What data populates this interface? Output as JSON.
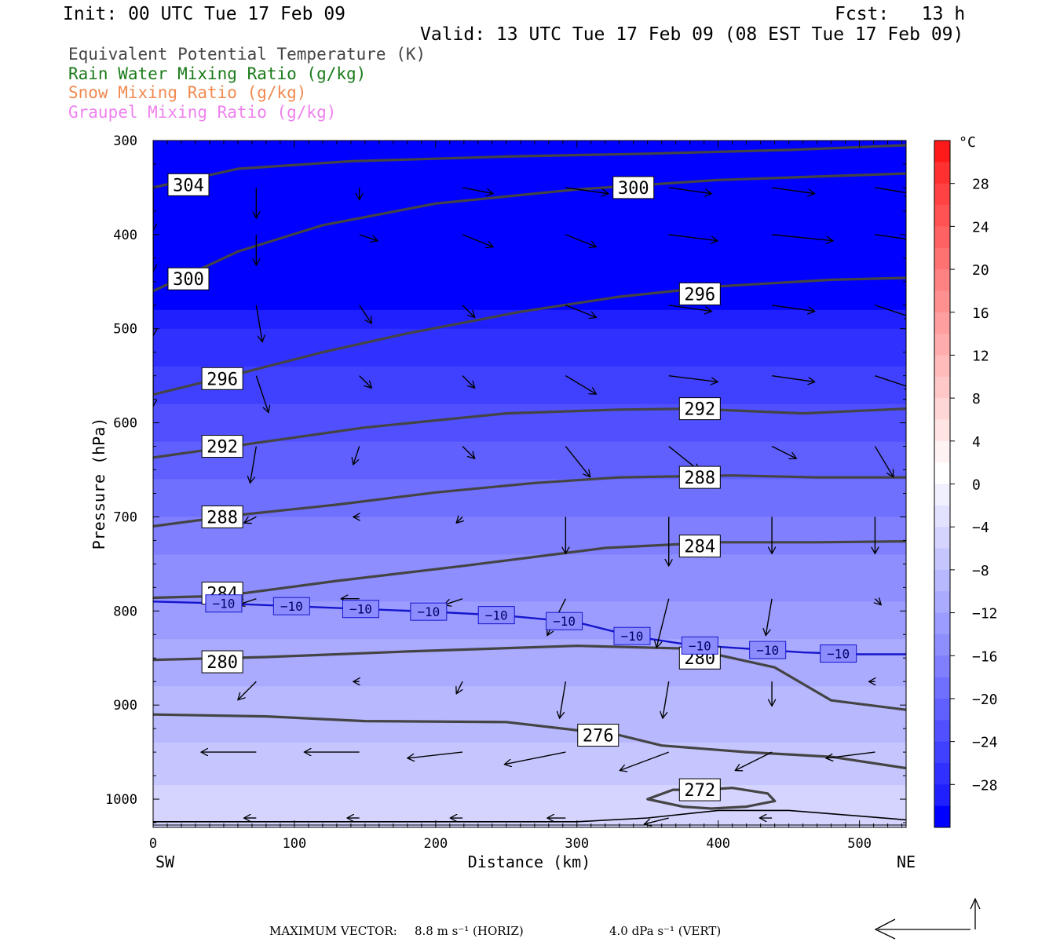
{
  "header": {
    "init": "Init: 00 UTC Tue 17 Feb 09",
    "fcst": "Fcst:   13 h",
    "valid": "Valid: 13 UTC Tue 17 Feb 09 (08 EST Tue 17 Feb 09)"
  },
  "legend": [
    {
      "label": "Equivalent Potential Temperature (K)",
      "color": "#444444"
    },
    {
      "label": "Rain Water Mixing Ratio (g/kg)",
      "color": "#1a7a1a"
    },
    {
      "label": "Snow Mixing Ratio (g/kg)",
      "color": "#f08a50"
    },
    {
      "label": "Graupel Mixing Ratio (g/kg)",
      "color": "#ee82ee"
    }
  ],
  "footer": {
    "label": "MAXIMUM VECTOR:",
    "horiz": "8.8 m s⁻¹ (HORIZ)",
    "vert": "4.0 dPa s⁻¹ (VERT)"
  },
  "chart_data": {
    "type": "contour",
    "xlabel": "Distance (km)",
    "ylabel": "Pressure (hPa)",
    "xlim": [
      0,
      533
    ],
    "ylim": [
      1030,
      300
    ],
    "x_ticks": [
      0,
      100,
      200,
      300,
      400,
      500
    ],
    "y_ticks": [
      300,
      400,
      500,
      600,
      700,
      800,
      900,
      1000
    ],
    "x_end_labels": {
      "left": "SW",
      "right": "NE"
    },
    "colorbar": {
      "unit": "°C",
      "tick_labels": [
        "28",
        "24",
        "20",
        "16",
        "12",
        "8",
        "4",
        "0",
        "−4",
        "−8",
        "−12",
        "−16",
        "−20",
        "−24",
        "−28"
      ],
      "tick_values": [
        28,
        24,
        20,
        16,
        12,
        8,
        4,
        0,
        -4,
        -8,
        -12,
        -16,
        -20,
        -24,
        -28
      ],
      "range": [
        -32,
        32
      ],
      "levels": [
        32,
        30,
        28,
        26,
        24,
        22,
        20,
        18,
        16,
        14,
        12,
        10,
        8,
        6,
        4,
        2,
        0,
        -2,
        -4,
        -6,
        -8,
        -10,
        -12,
        -14,
        -16,
        -18,
        -20,
        -22,
        -24,
        -26,
        -28,
        -30,
        -32
      ],
      "colors": [
        "#ff1a1a",
        "#ff3030",
        "#ff4242",
        "#ff5252",
        "#ff6262",
        "#ff7272",
        "#ff8282",
        "#ff9090",
        "#ff9e9e",
        "#ffacac",
        "#ffbaba",
        "#ffc8c8",
        "#ffd6d6",
        "#ffe4e4",
        "#fff2f2",
        "#ffffff",
        "#f0f0ff",
        "#e2e2ff",
        "#d4d4ff",
        "#c6c6ff",
        "#b8b8ff",
        "#aaaaff",
        "#9c9cff",
        "#8e8eff",
        "#8080ff",
        "#7070ff",
        "#6060ff",
        "#5050ff",
        "#4040ff",
        "#3030ff",
        "#2020ff",
        "#0000ff"
      ]
    },
    "temperature_field": {
      "description": "shaded temperature (°C) vs pressure",
      "profile": [
        {
          "p": 300,
          "t": -32
        },
        {
          "p": 480,
          "t": -30
        },
        {
          "p": 500,
          "t": -28
        },
        {
          "p": 540,
          "t": -26
        },
        {
          "p": 580,
          "t": -24
        },
        {
          "p": 620,
          "t": -22
        },
        {
          "p": 660,
          "t": -20
        },
        {
          "p": 700,
          "t": -18
        },
        {
          "p": 740,
          "t": -16
        },
        {
          "p": 790,
          "t": -14
        },
        {
          "p": 830,
          "t": -12
        },
        {
          "p": 880,
          "t": -10
        },
        {
          "p": 940,
          "t": -8
        },
        {
          "p": 985,
          "t": -6
        },
        {
          "p": 1030,
          "t": -4
        }
      ]
    },
    "isotherm_label": "−10",
    "isotherm": {
      "value": -10,
      "points": [
        [
          0,
          790
        ],
        [
          50,
          792
        ],
        [
          100,
          795
        ],
        [
          150,
          798
        ],
        [
          200,
          801
        ],
        [
          250,
          805
        ],
        [
          300,
          812
        ],
        [
          340,
          827
        ],
        [
          380,
          836
        ],
        [
          420,
          840
        ],
        [
          460,
          844
        ],
        [
          500,
          846
        ],
        [
          533,
          846
        ]
      ],
      "label_x": [
        50,
        98,
        147,
        195,
        243,
        291,
        339,
        387,
        435,
        485
      ]
    },
    "theta_e_contours": [
      {
        "label": "304",
        "points": [
          [
            0,
            350
          ],
          [
            60,
            330
          ],
          [
            140,
            322
          ],
          [
            250,
            317
          ],
          [
            350,
            314
          ],
          [
            450,
            310
          ],
          [
            533,
            305
          ]
        ],
        "label_at": [
          25,
          347
        ]
      },
      {
        "label": "300",
        "points": [
          [
            0,
            460
          ],
          [
            60,
            418
          ],
          [
            120,
            390
          ],
          [
            200,
            367
          ],
          [
            300,
            352
          ],
          [
            400,
            342
          ],
          [
            533,
            335
          ]
        ],
        "label_at": [
          25,
          447
        ]
      },
      {
        "label": "300",
        "points": [],
        "label_at": [
          340,
          350
        ]
      },
      {
        "label": "296",
        "points": [
          [
            0,
            570
          ],
          [
            60,
            548
          ],
          [
            120,
            525
          ],
          [
            180,
            505
          ],
          [
            260,
            482
          ],
          [
            330,
            466
          ],
          [
            400,
            455
          ],
          [
            480,
            448
          ],
          [
            533,
            446
          ]
        ],
        "label_at": [
          49,
          553
        ]
      },
      {
        "label": "296",
        "points": [],
        "label_at": [
          387,
          463
        ]
      },
      {
        "label": "292",
        "points": [
          [
            0,
            637
          ],
          [
            70,
            622
          ],
          [
            150,
            605
          ],
          [
            250,
            590
          ],
          [
            330,
            586
          ],
          [
            380,
            585
          ],
          [
            460,
            590
          ],
          [
            533,
            585
          ]
        ],
        "label_at": [
          49,
          625
        ]
      },
      {
        "label": "292",
        "points": [],
        "label_at": [
          387,
          585
        ]
      },
      {
        "label": "288",
        "points": [
          [
            0,
            710
          ],
          [
            60,
            698
          ],
          [
            130,
            687
          ],
          [
            200,
            674
          ],
          [
            270,
            664
          ],
          [
            330,
            658
          ],
          [
            410,
            656
          ],
          [
            470,
            658
          ],
          [
            533,
            658
          ]
        ],
        "label_at": [
          49,
          700
        ]
      },
      {
        "label": "288",
        "points": [],
        "label_at": [
          387,
          658
        ]
      },
      {
        "label": "284",
        "points": [
          [
            0,
            786
          ],
          [
            50,
            784
          ],
          [
            130,
            768
          ],
          [
            220,
            752
          ],
          [
            320,
            733
          ],
          [
            400,
            727
          ],
          [
            470,
            727
          ],
          [
            533,
            726
          ]
        ],
        "label_at": [
          49,
          781
        ]
      },
      {
        "label": "284",
        "points": [],
        "label_at": [
          387,
          731
        ]
      },
      {
        "label": "280",
        "points": [
          [
            0,
            852
          ],
          [
            80,
            849
          ],
          [
            180,
            843
          ],
          [
            300,
            837
          ],
          [
            380,
            840
          ],
          [
            440,
            860
          ],
          [
            480,
            895
          ],
          [
            533,
            905
          ]
        ],
        "label_at": [
          49,
          854
        ]
      },
      {
        "label": "280",
        "points": [],
        "label_at": [
          387,
          850
        ]
      },
      {
        "label": "276",
        "points": [
          [
            0,
            910
          ],
          [
            80,
            912
          ],
          [
            150,
            917
          ],
          [
            250,
            918
          ],
          [
            330,
            932
          ],
          [
            360,
            943
          ],
          [
            420,
            950
          ],
          [
            480,
            955
          ],
          [
            533,
            967
          ]
        ],
        "label_at": [
          315,
          932
        ]
      },
      {
        "label": "272",
        "points": [
          [
            390,
            990
          ],
          [
            410,
            988
          ],
          [
            435,
            994
          ],
          [
            440,
            1002
          ],
          [
            420,
            1008
          ],
          [
            395,
            1010
          ],
          [
            375,
            1008
          ],
          [
            350,
            1000
          ],
          [
            368,
            990
          ],
          [
            390,
            990
          ]
        ],
        "label_at": [
          387,
          990
        ]
      }
    ],
    "surface_line": {
      "points": [
        [
          0,
          1024
        ],
        [
          100,
          1024
        ],
        [
          200,
          1024
        ],
        [
          300,
          1024
        ],
        [
          350,
          1020
        ],
        [
          400,
          1012
        ],
        [
          450,
          1012
        ],
        [
          500,
          1018
        ],
        [
          533,
          1022
        ]
      ]
    },
    "wind_vectors": [
      {
        "x": 0,
        "p": 350,
        "dx": 0.0,
        "dy": 0.7
      },
      {
        "x": 73,
        "p": 350,
        "dx": 0.0,
        "dy": 0.5
      },
      {
        "x": 146,
        "p": 350,
        "dx": 0.0,
        "dy": 0.2
      },
      {
        "x": 219,
        "p": 350,
        "dx": 0.5,
        "dy": 0.1
      },
      {
        "x": 292,
        "p": 350,
        "dx": 0.7,
        "dy": 0.1
      },
      {
        "x": 365,
        "p": 350,
        "dx": 0.7,
        "dy": 0.1
      },
      {
        "x": 438,
        "p": 350,
        "dx": 0.7,
        "dy": 0.1
      },
      {
        "x": 511,
        "p": 350,
        "dx": 0.6,
        "dy": 0.1
      },
      {
        "x": 0,
        "p": 400,
        "dx": 0.0,
        "dy": 0.6
      },
      {
        "x": 73,
        "p": 400,
        "dx": 0.0,
        "dy": 0.5
      },
      {
        "x": 146,
        "p": 400,
        "dx": 0.3,
        "dy": 0.1
      },
      {
        "x": 219,
        "p": 400,
        "dx": 0.5,
        "dy": 0.2
      },
      {
        "x": 292,
        "p": 400,
        "dx": 0.5,
        "dy": 0.2
      },
      {
        "x": 365,
        "p": 400,
        "dx": 0.8,
        "dy": 0.1
      },
      {
        "x": 438,
        "p": 400,
        "dx": 1.0,
        "dy": 0.1
      },
      {
        "x": 511,
        "p": 400,
        "dx": 0.7,
        "dy": 0.1
      },
      {
        "x": 0,
        "p": 475,
        "dx": 0.0,
        "dy": 0.5
      },
      {
        "x": 73,
        "p": 475,
        "dx": 0.1,
        "dy": 0.6
      },
      {
        "x": 146,
        "p": 475,
        "dx": 0.2,
        "dy": 0.3
      },
      {
        "x": 219,
        "p": 475,
        "dx": 0.2,
        "dy": 0.2
      },
      {
        "x": 292,
        "p": 475,
        "dx": 0.5,
        "dy": 0.2
      },
      {
        "x": 365,
        "p": 475,
        "dx": 0.7,
        "dy": 0.1
      },
      {
        "x": 438,
        "p": 475,
        "dx": 0.7,
        "dy": 0.1
      },
      {
        "x": 511,
        "p": 475,
        "dx": 0.6,
        "dy": 0.2
      },
      {
        "x": 0,
        "p": 550,
        "dx": 0.0,
        "dy": 0.5
      },
      {
        "x": 73,
        "p": 550,
        "dx": 0.2,
        "dy": 0.6
      },
      {
        "x": 146,
        "p": 550,
        "dx": 0.2,
        "dy": 0.2
      },
      {
        "x": 219,
        "p": 550,
        "dx": 0.2,
        "dy": 0.2
      },
      {
        "x": 292,
        "p": 550,
        "dx": 0.5,
        "dy": 0.3
      },
      {
        "x": 365,
        "p": 550,
        "dx": 0.8,
        "dy": 0.1
      },
      {
        "x": 438,
        "p": 550,
        "dx": 0.7,
        "dy": 0.1
      },
      {
        "x": 511,
        "p": 550,
        "dx": 0.6,
        "dy": 0.2
      },
      {
        "x": 73,
        "p": 625,
        "dx": -0.1,
        "dy": 0.6
      },
      {
        "x": 146,
        "p": 625,
        "dx": -0.1,
        "dy": 0.3
      },
      {
        "x": 219,
        "p": 625,
        "dx": 0.2,
        "dy": 0.2
      },
      {
        "x": 292,
        "p": 625,
        "dx": 0.4,
        "dy": 0.5
      },
      {
        "x": 365,
        "p": 625,
        "dx": 0.5,
        "dy": 0.4
      },
      {
        "x": 438,
        "p": 625,
        "dx": 0.4,
        "dy": 0.2
      },
      {
        "x": 511,
        "p": 625,
        "dx": 0.3,
        "dy": 0.5
      },
      {
        "x": 73,
        "p": 700,
        "dx": -0.2,
        "dy": 0.1
      },
      {
        "x": 146,
        "p": 700,
        "dx": -0.1,
        "dy": 0.0
      },
      {
        "x": 219,
        "p": 700,
        "dx": -0.1,
        "dy": 0.1
      },
      {
        "x": 292,
        "p": 700,
        "dx": 0.0,
        "dy": 0.6
      },
      {
        "x": 365,
        "p": 700,
        "dx": 0.0,
        "dy": 0.8
      },
      {
        "x": 438,
        "p": 700,
        "dx": 0.0,
        "dy": 0.6
      },
      {
        "x": 511,
        "p": 700,
        "dx": 0.0,
        "dy": 0.6
      },
      {
        "x": 73,
        "p": 787,
        "dx": -0.3,
        "dy": 0.1
      },
      {
        "x": 146,
        "p": 787,
        "dx": -0.3,
        "dy": 0.0
      },
      {
        "x": 219,
        "p": 787,
        "dx": -0.3,
        "dy": 0.1
      },
      {
        "x": 292,
        "p": 787,
        "dx": -0.3,
        "dy": 0.6
      },
      {
        "x": 365,
        "p": 787,
        "dx": -0.2,
        "dy": 0.8
      },
      {
        "x": 438,
        "p": 787,
        "dx": -0.1,
        "dy": 0.6
      },
      {
        "x": 511,
        "p": 787,
        "dx": 0.1,
        "dy": 0.1
      },
      {
        "x": 73,
        "p": 875,
        "dx": -0.3,
        "dy": 0.3
      },
      {
        "x": 146,
        "p": 875,
        "dx": -0.1,
        "dy": 0.0
      },
      {
        "x": 219,
        "p": 875,
        "dx": -0.1,
        "dy": 0.2
      },
      {
        "x": 292,
        "p": 875,
        "dx": -0.1,
        "dy": 0.6
      },
      {
        "x": 365,
        "p": 875,
        "dx": -0.1,
        "dy": 0.6
      },
      {
        "x": 438,
        "p": 875,
        "dx": 0.0,
        "dy": 0.4
      },
      {
        "x": 511,
        "p": 875,
        "dx": -0.1,
        "dy": 0.0
      },
      {
        "x": 73,
        "p": 950,
        "dx": -0.9,
        "dy": 0.0
      },
      {
        "x": 146,
        "p": 950,
        "dx": -0.9,
        "dy": 0.0
      },
      {
        "x": 219,
        "p": 950,
        "dx": -0.9,
        "dy": 0.1
      },
      {
        "x": 292,
        "p": 950,
        "dx": -1.0,
        "dy": 0.2
      },
      {
        "x": 365,
        "p": 950,
        "dx": -0.8,
        "dy": 0.3
      },
      {
        "x": 438,
        "p": 950,
        "dx": -0.6,
        "dy": 0.3
      },
      {
        "x": 511,
        "p": 950,
        "dx": -0.8,
        "dy": 0.1
      },
      {
        "x": 73,
        "p": 1020,
        "dx": -0.2,
        "dy": 0.0
      },
      {
        "x": 146,
        "p": 1020,
        "dx": -0.2,
        "dy": 0.0
      },
      {
        "x": 219,
        "p": 1020,
        "dx": -0.2,
        "dy": 0.0
      },
      {
        "x": 292,
        "p": 1020,
        "dx": -0.3,
        "dy": 0.0
      },
      {
        "x": 365,
        "p": 1020,
        "dx": -0.4,
        "dy": 0.1
      },
      {
        "x": 438,
        "p": 1020,
        "dx": -0.2,
        "dy": 0.0
      }
    ]
  }
}
